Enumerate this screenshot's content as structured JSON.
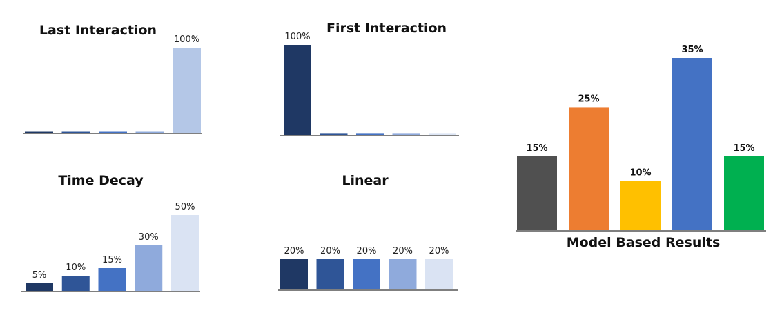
{
  "chart_data": [
    {
      "type": "bar",
      "title": "Last Interaction",
      "values": [
        2,
        2,
        2,
        2,
        100
      ],
      "labels": [
        "",
        "",
        "",
        "",
        "100%"
      ],
      "colors": [
        "#1f3864",
        "#2f5597",
        "#4472c4",
        "#8faadc",
        "#b4c7e7"
      ],
      "ylim": [
        0,
        100
      ]
    },
    {
      "type": "bar",
      "title": "First Interaction",
      "values": [
        100,
        2,
        2,
        2,
        2
      ],
      "labels": [
        "100%",
        "",
        "",
        "",
        ""
      ],
      "colors": [
        "#1f3864",
        "#2f5597",
        "#4472c4",
        "#8faadc",
        "#dae3f3"
      ],
      "ylim": [
        0,
        100
      ]
    },
    {
      "type": "bar",
      "title": "Time Decay",
      "values": [
        5,
        10,
        15,
        30,
        50
      ],
      "labels": [
        "5%",
        "10%",
        "15%",
        "30%",
        "50%"
      ],
      "colors": [
        "#1f3864",
        "#2f5597",
        "#4472c4",
        "#8faadc",
        "#dae3f3"
      ],
      "ylim": [
        0,
        50
      ]
    },
    {
      "type": "bar",
      "title": "Linear",
      "values": [
        20,
        20,
        20,
        20,
        20
      ],
      "labels": [
        "20%",
        "20%",
        "20%",
        "20%",
        "20%"
      ],
      "colors": [
        "#1f3864",
        "#2f5597",
        "#4472c4",
        "#8faadc",
        "#dae3f3"
      ],
      "ylim": [
        0,
        50
      ]
    },
    {
      "type": "bar",
      "title": "Model Based Results",
      "values": [
        15,
        25,
        10,
        35,
        15
      ],
      "labels": [
        "15%",
        "25%",
        "10%",
        "35%",
        "15%"
      ],
      "colors": [
        "#505050",
        "#ed7d31",
        "#ffc000",
        "#4472c4",
        "#00b050"
      ],
      "ylim": [
        0,
        35
      ]
    }
  ]
}
